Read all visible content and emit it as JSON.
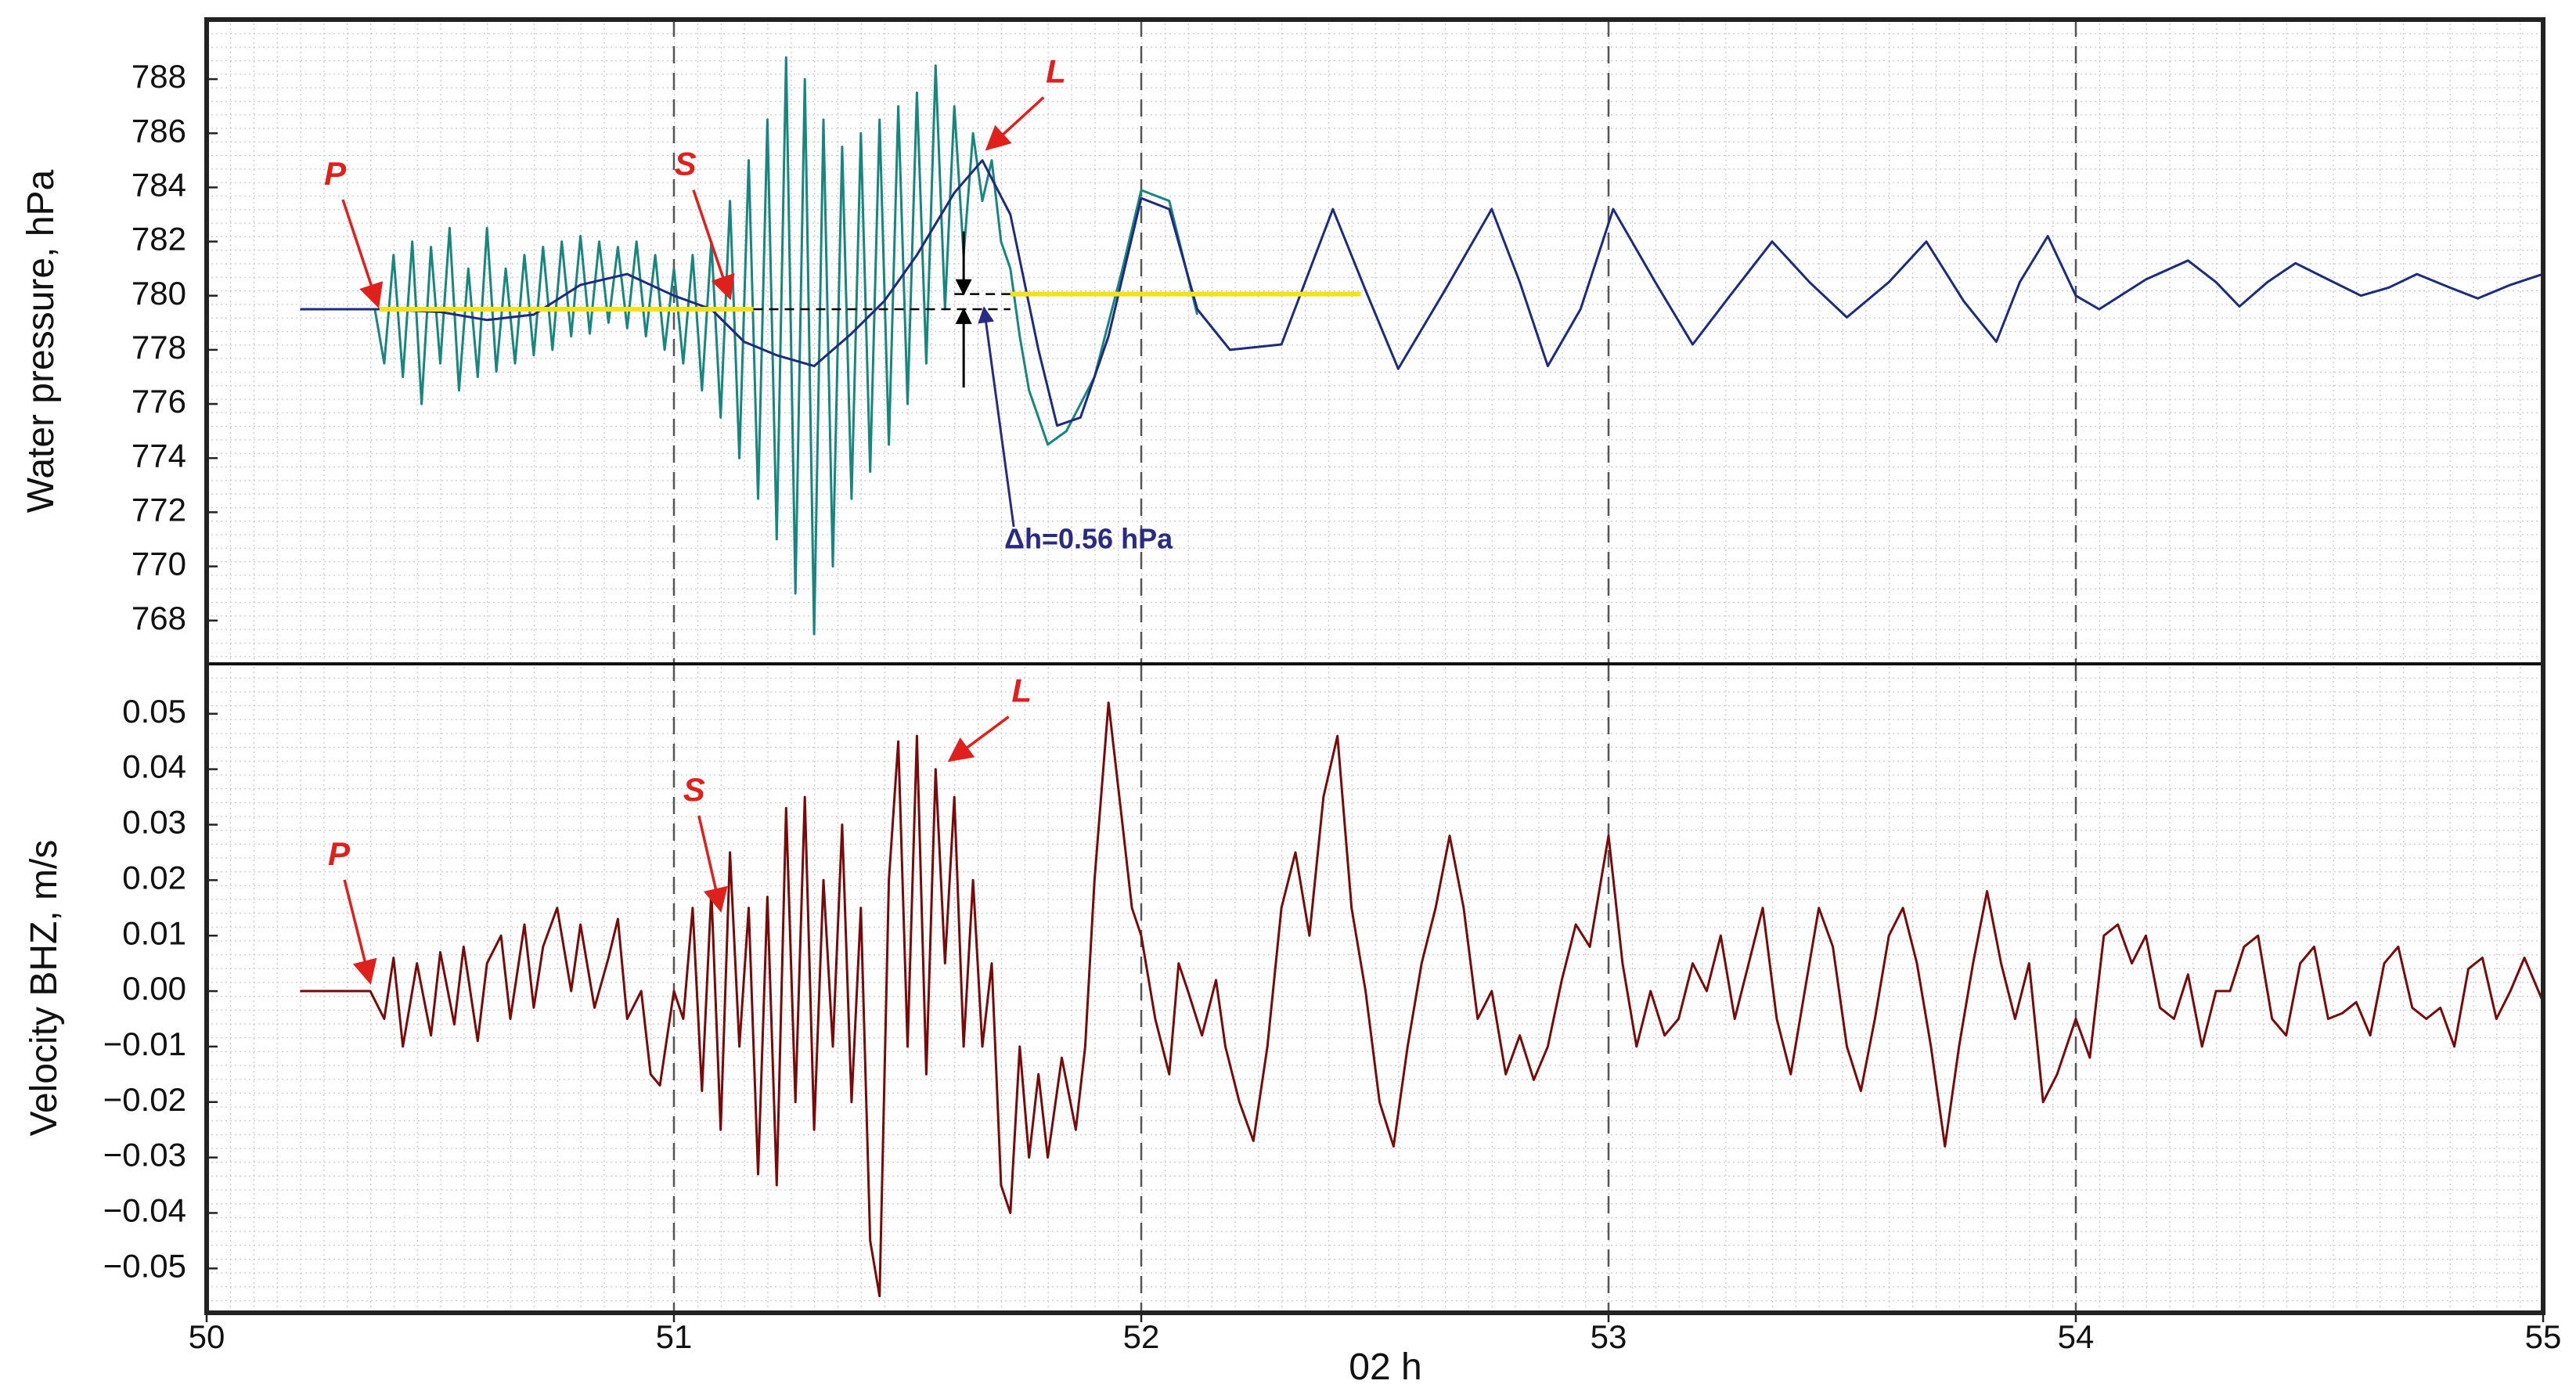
{
  "chart_data": [
    {
      "type": "line",
      "ylabel": "Water pressure, hPa",
      "xlim": [
        50,
        55
      ],
      "ylim": [
        766.4,
        790.2
      ],
      "yticks": [
        768,
        770,
        772,
        774,
        776,
        778,
        780,
        782,
        784,
        786,
        788
      ],
      "grid": true,
      "series": [
        {
          "color": "#17867f",
          "x": [
            50.36,
            50.38,
            50.4,
            50.42,
            50.44,
            50.46,
            50.48,
            50.5,
            50.52,
            50.54,
            50.56,
            50.58,
            50.6,
            50.62,
            50.64,
            50.66,
            50.68,
            50.7,
            50.72,
            50.74,
            50.76,
            50.78,
            50.8,
            50.82,
            50.84,
            50.86,
            50.88,
            50.9,
            50.92,
            50.94,
            50.96,
            50.98,
            51,
            51.02,
            51.04,
            51.06,
            51.08,
            51.1,
            51.12,
            51.14,
            51.16,
            51.18,
            51.2,
            51.22,
            51.24,
            51.26,
            51.28,
            51.3,
            51.32,
            51.34,
            51.36,
            51.38,
            51.4,
            51.42,
            51.44,
            51.46,
            51.48,
            51.5,
            51.52,
            51.54,
            51.56,
            51.58,
            51.6,
            51.62,
            51.64,
            51.66,
            51.68,
            51.7,
            51.72,
            51.74,
            51.76,
            51.78,
            51.8,
            51.84,
            51.9,
            51.96,
            52,
            52.06,
            52.12
          ],
          "values": [
            779.5,
            777.5,
            781.5,
            777,
            782,
            776,
            781.8,
            777.5,
            782.5,
            776.5,
            781,
            777,
            782.5,
            777.2,
            781,
            777.5,
            781.5,
            777.8,
            781.8,
            778,
            782,
            778.5,
            782.2,
            778.6,
            782,
            779,
            781.8,
            778.8,
            782,
            778.5,
            781.5,
            778,
            781,
            777.5,
            781.5,
            776.5,
            782,
            775.5,
            783.5,
            774,
            785,
            772.5,
            786.5,
            771,
            788.8,
            769,
            788,
            767.5,
            786.5,
            770,
            785.5,
            772.5,
            786,
            773.5,
            786.5,
            774.5,
            787,
            776,
            787.5,
            777.5,
            788.5,
            779.5,
            787,
            781.5,
            786,
            783.5,
            785,
            782,
            781,
            778.5,
            776.5,
            775.5,
            774.5,
            775,
            777,
            781,
            783.9,
            783.5,
            779.3
          ]
        },
        {
          "color": "#1c2a80",
          "x": [
            50.2,
            50.37,
            50.5,
            50.6,
            50.7,
            50.8,
            50.9,
            51,
            51.08,
            51.15,
            51.22,
            51.3,
            51.38,
            51.45,
            51.52,
            51.6,
            51.66,
            51.72,
            51.78,
            51.82,
            51.87,
            51.93,
            52,
            52.06,
            52.12,
            52.19,
            52.3,
            52.41,
            52.48,
            52.55,
            52.65,
            52.75,
            52.81,
            52.87,
            52.94,
            53.01,
            53.1,
            53.18,
            53.26,
            53.35,
            53.43,
            53.51,
            53.6,
            53.68,
            53.76,
            53.83,
            53.88,
            53.94,
            54,
            54.05,
            54.15,
            54.24,
            54.3,
            54.35,
            54.41,
            54.47,
            54.54,
            54.61,
            54.67,
            54.73,
            54.8,
            54.86,
            54.93,
            55
          ],
          "values": [
            779.5,
            779.5,
            779.4,
            779.1,
            779.3,
            780.4,
            780.8,
            780,
            779.5,
            778.3,
            777.8,
            777.4,
            778.6,
            779.8,
            781.5,
            783.8,
            785,
            783,
            778,
            775.2,
            775.5,
            778.5,
            783.6,
            783.2,
            779.5,
            778,
            778.2,
            783.2,
            780.2,
            777.3,
            780.2,
            783.2,
            780.5,
            777.4,
            779.5,
            783.2,
            780.5,
            778.2,
            780,
            782,
            780.5,
            779.2,
            780.5,
            782,
            779.8,
            778.3,
            780.5,
            782.2,
            780,
            779.5,
            780.6,
            781.3,
            780.5,
            779.6,
            780.5,
            781.2,
            780.6,
            780,
            780.3,
            780.8,
            780.3,
            779.9,
            780.4,
            780.8
          ]
        }
      ],
      "reference_lines": [
        {
          "color": "#f3e21a",
          "x": [
            50.37,
            51.17
          ],
          "y": [
            779.5,
            779.5
          ]
        },
        {
          "color": "#000000",
          "dashed": true,
          "x": [
            51.17,
            51.72
          ],
          "y": [
            779.5,
            779.5
          ]
        },
        {
          "color": "#000000",
          "dashed": true,
          "x": [
            51.6,
            51.72
          ],
          "y": [
            780.06,
            780.06
          ]
        },
        {
          "color": "#f3e21a",
          "x": [
            51.72,
            52.47
          ],
          "y": [
            780.06,
            780.06
          ]
        }
      ],
      "annotations": [
        {
          "text": "P",
          "x": 50.367,
          "y": 779.5
        },
        {
          "text": "S",
          "x": 51.12,
          "y": 779.8
        },
        {
          "text": "L",
          "x": 51.67,
          "y": 785.3
        }
      ],
      "delta_h": {
        "text": "Δh=0.56 hPa",
        "x": 51.62,
        "y_low": 779.5,
        "y_high": 780.06
      }
    },
    {
      "type": "line",
      "ylabel": "Velocity BHZ, m/s",
      "xlabel": "02 h",
      "xlim": [
        50,
        55
      ],
      "xticks": [
        50,
        51,
        52,
        53,
        54,
        55
      ],
      "ylim": [
        -0.058,
        0.059
      ],
      "yticks": [
        {
          "value": -0.05,
          "label": "−0.05"
        },
        {
          "value": -0.04,
          "label": "−0.04"
        },
        {
          "value": -0.03,
          "label": "−0.03"
        },
        {
          "value": -0.02,
          "label": "−0.02"
        },
        {
          "value": -0.01,
          "label": "−0.01"
        },
        {
          "value": 0,
          "label": "0.00"
        },
        0.01,
        0.02,
        0.03,
        0.04,
        0.05
      ],
      "grid": true,
      "series": [
        {
          "color": "#7a0a0a",
          "x": [
            50.2,
            50.35,
            50.38,
            50.4,
            50.42,
            50.45,
            50.48,
            50.5,
            50.53,
            50.55,
            50.58,
            50.6,
            50.63,
            50.65,
            50.68,
            50.7,
            50.72,
            50.75,
            50.78,
            50.8,
            50.83,
            50.86,
            50.88,
            50.9,
            50.93,
            50.95,
            50.97,
            51,
            51.02,
            51.04,
            51.06,
            51.08,
            51.1,
            51.12,
            51.14,
            51.16,
            51.18,
            51.2,
            51.22,
            51.24,
            51.26,
            51.28,
            51.3,
            51.32,
            51.34,
            51.36,
            51.38,
            51.4,
            51.42,
            51.44,
            51.46,
            51.48,
            51.5,
            51.52,
            51.54,
            51.56,
            51.58,
            51.6,
            51.62,
            51.64,
            51.66,
            51.68,
            51.7,
            51.72,
            51.74,
            51.76,
            51.78,
            51.8,
            51.83,
            51.86,
            51.88,
            51.9,
            51.93,
            51.96,
            51.98,
            52,
            52.03,
            52.06,
            52.08,
            52.1,
            52.13,
            52.16,
            52.18,
            52.21,
            52.24,
            52.27,
            52.3,
            52.33,
            52.36,
            52.39,
            52.42,
            52.45,
            52.48,
            52.51,
            52.54,
            52.57,
            52.6,
            52.63,
            52.66,
            52.69,
            52.72,
            52.75,
            52.78,
            52.81,
            52.84,
            52.87,
            52.9,
            52.93,
            52.96,
            53,
            53.03,
            53.06,
            53.09,
            53.12,
            53.15,
            53.18,
            53.21,
            53.24,
            53.27,
            53.3,
            53.33,
            53.36,
            53.39,
            53.42,
            53.45,
            53.48,
            53.51,
            53.54,
            53.57,
            53.6,
            53.63,
            53.66,
            53.69,
            53.72,
            53.75,
            53.78,
            53.81,
            53.84,
            53.87,
            53.9,
            53.93,
            53.96,
            54,
            54.03,
            54.06,
            54.09,
            54.12,
            54.15,
            54.18,
            54.21,
            54.24,
            54.27,
            54.3,
            54.33,
            54.36,
            54.39,
            54.42,
            54.45,
            54.48,
            54.51,
            54.54,
            54.57,
            54.6,
            54.63,
            54.66,
            54.69,
            54.72,
            54.75,
            54.78,
            54.81,
            54.84,
            54.87,
            54.9,
            54.93,
            54.96,
            55
          ],
          "values": [
            0,
            0,
            -0.005,
            0.006,
            -0.01,
            0.005,
            -0.008,
            0.007,
            -0.006,
            0.008,
            -0.009,
            0.005,
            0.01,
            -0.005,
            0.012,
            -0.003,
            0.008,
            0.015,
            0,
            0.012,
            -0.003,
            0.006,
            0.013,
            -0.005,
            0,
            -0.015,
            -0.017,
            0,
            -0.005,
            0.015,
            -0.018,
            0.018,
            -0.025,
            0.025,
            -0.01,
            0.015,
            -0.033,
            0.017,
            -0.035,
            0.033,
            -0.02,
            0.035,
            -0.025,
            0.02,
            -0.01,
            0.03,
            -0.02,
            0.015,
            -0.045,
            -0.055,
            0.02,
            0.045,
            -0.01,
            0.046,
            -0.015,
            0.04,
            0.005,
            0.035,
            -0.01,
            0.02,
            -0.01,
            0.005,
            -0.035,
            -0.04,
            -0.01,
            -0.03,
            -0.015,
            -0.03,
            -0.012,
            -0.025,
            -0.01,
            0.02,
            0.052,
            0.03,
            0.015,
            0.01,
            -0.005,
            -0.015,
            0.005,
            0,
            -0.008,
            0.002,
            -0.01,
            -0.02,
            -0.027,
            -0.01,
            0.015,
            0.025,
            0.01,
            0.035,
            0.046,
            0.015,
            0,
            -0.02,
            -0.028,
            -0.01,
            0.005,
            0.015,
            0.028,
            0.015,
            -0.005,
            0,
            -0.015,
            -0.008,
            -0.016,
            -0.01,
            0.002,
            0.012,
            0.008,
            0.028,
            0.005,
            -0.01,
            0,
            -0.008,
            -0.005,
            0.005,
            0,
            0.01,
            -0.005,
            0.005,
            0.015,
            -0.005,
            -0.015,
            0,
            0.015,
            0.008,
            -0.01,
            -0.018,
            -0.005,
            0.01,
            0.015,
            0.005,
            -0.01,
            -0.028,
            -0.01,
            0.005,
            0.018,
            0.005,
            -0.005,
            0.005,
            -0.02,
            -0.015,
            -0.005,
            -0.012,
            0.01,
            0.012,
            0.005,
            0.01,
            -0.003,
            -0.005,
            0.003,
            -0.01,
            0,
            0,
            0.008,
            0.01,
            -0.005,
            -0.008,
            0.005,
            0.008,
            -0.005,
            -0.004,
            -0.002,
            -0.008,
            0.005,
            0.008,
            -0.003,
            -0.005,
            -0.003,
            -0.01,
            0.004,
            0.006,
            -0.005,
            0,
            0.006,
            -0.002
          ]
        }
      ],
      "annotations": [
        {
          "text": "P",
          "x": 50.35,
          "y": 0.001
        },
        {
          "text": "S",
          "x": 51.1,
          "y": 0.014
        },
        {
          "text": "L",
          "x": 51.59,
          "y": 0.041
        }
      ]
    }
  ]
}
